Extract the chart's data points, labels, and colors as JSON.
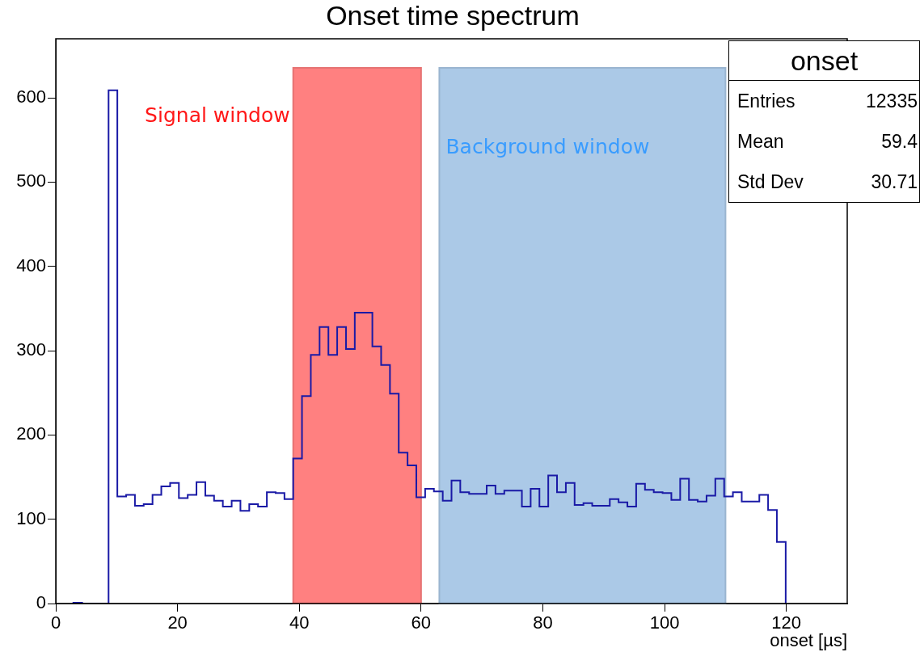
{
  "chart_data": {
    "type": "histogram",
    "title": "Onset time spectrum",
    "xlabel": "onset [µs]",
    "bins": [
      2.89,
      4.33,
      5.78,
      7.22,
      8.67,
      10.11,
      11.56,
      13,
      14.44,
      15.89,
      17.33,
      18.78,
      20.22,
      21.67,
      23.11,
      24.56,
      26,
      27.44,
      28.89,
      30.33,
      31.78,
      33.22,
      34.67,
      36.11,
      37.56,
      39,
      40.44,
      41.89,
      43.33,
      44.78,
      46.22,
      47.67,
      49.11,
      50.56,
      52,
      53.44,
      54.89,
      56.33,
      57.78,
      59.22,
      60.67,
      62.11,
      63.56,
      65,
      66.44,
      67.89,
      69.33,
      70.78,
      72.22,
      73.67,
      75.11,
      76.56,
      78,
      79.44,
      80.89,
      82.33,
      83.78,
      85.22,
      86.67,
      88.11,
      89.56,
      91,
      92.44,
      93.89,
      95.33,
      96.78,
      98.22,
      99.67,
      101.11,
      102.56,
      104,
      105.44,
      106.89,
      108.33,
      109.78,
      111.22,
      112.67,
      114.11,
      115.56,
      117,
      118.44,
      119.89
    ],
    "values": [
      1,
      0,
      0,
      0,
      609,
      127,
      129,
      116,
      118,
      129,
      139,
      143,
      125,
      129,
      144,
      128,
      122,
      115,
      122,
      110,
      118,
      115,
      132,
      131,
      124,
      172,
      246,
      295,
      328,
      295,
      328,
      302,
      345,
      345,
      305,
      283,
      249,
      179,
      164,
      126,
      136,
      133,
      122,
      146,
      132,
      130,
      130,
      140,
      130,
      134,
      134,
      115,
      136,
      115,
      152,
      132,
      143,
      117,
      119,
      116,
      116,
      124,
      120,
      115,
      142,
      135,
      132,
      131,
      123,
      148,
      123,
      121,
      128,
      148,
      127,
      132,
      121,
      121,
      129,
      111,
      73
    ],
    "color": "#1a1aa6",
    "xlim": [
      0,
      130
    ],
    "xticks": [
      0,
      20,
      40,
      60,
      80,
      100,
      120
    ],
    "ylim": [
      0,
      670
    ],
    "yticks": [
      0,
      100,
      200,
      300,
      400,
      500,
      600
    ],
    "grid": false,
    "legend": false,
    "bands": [
      {
        "axis": "x",
        "from": 39,
        "to": 60,
        "label": "Signal window",
        "color": "#ff8080"
      },
      {
        "axis": "x",
        "from": 63,
        "to": 110,
        "label": "Background window",
        "color": "#abc9e7"
      }
    ],
    "annotations": [
      "onset",
      "Entries",
      "12335",
      "Mean",
      "59.4",
      "Std Dev",
      "30.71"
    ]
  }
}
